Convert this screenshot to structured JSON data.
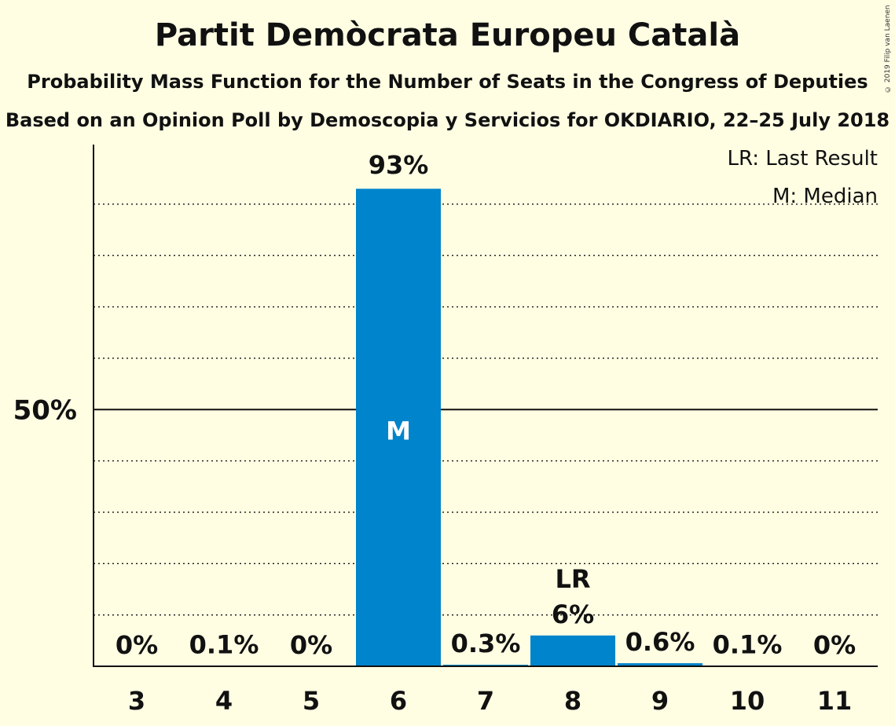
{
  "title": "Partit Demòcrata Europeu Català",
  "subtitle": "Probability Mass Function for the Number of Seats in the Congress of Deputies",
  "subtitle2": "Based on an Opinion Poll by Demoscopia y Servicios for OKDIARIO, 22–25 July 2018",
  "copyright": "© 2019 Filip van Laenen",
  "legend": {
    "last_result": "LR: Last Result",
    "median": "M: Median"
  },
  "colors": {
    "bar": "#0084CC",
    "background": "#FFFEE3",
    "text": "#111111"
  },
  "chart_data": {
    "type": "bar",
    "categories": [
      "3",
      "4",
      "5",
      "6",
      "7",
      "8",
      "9",
      "10",
      "11"
    ],
    "values": [
      0,
      0.1,
      0,
      93,
      0.3,
      6,
      0.6,
      0.1,
      0
    ],
    "value_labels": [
      "0%",
      "0.1%",
      "0%",
      "93%",
      "0.3%",
      "6%",
      "0.6%",
      "0.1%",
      "0%"
    ],
    "ylim": [
      0,
      100
    ],
    "y_tick_label": "50%",
    "y_tick_value": 50,
    "grid": true,
    "median_category": "6",
    "median_marker": "M",
    "last_result_category": "8",
    "last_result_marker": "LR",
    "legend_position": "top-right"
  }
}
